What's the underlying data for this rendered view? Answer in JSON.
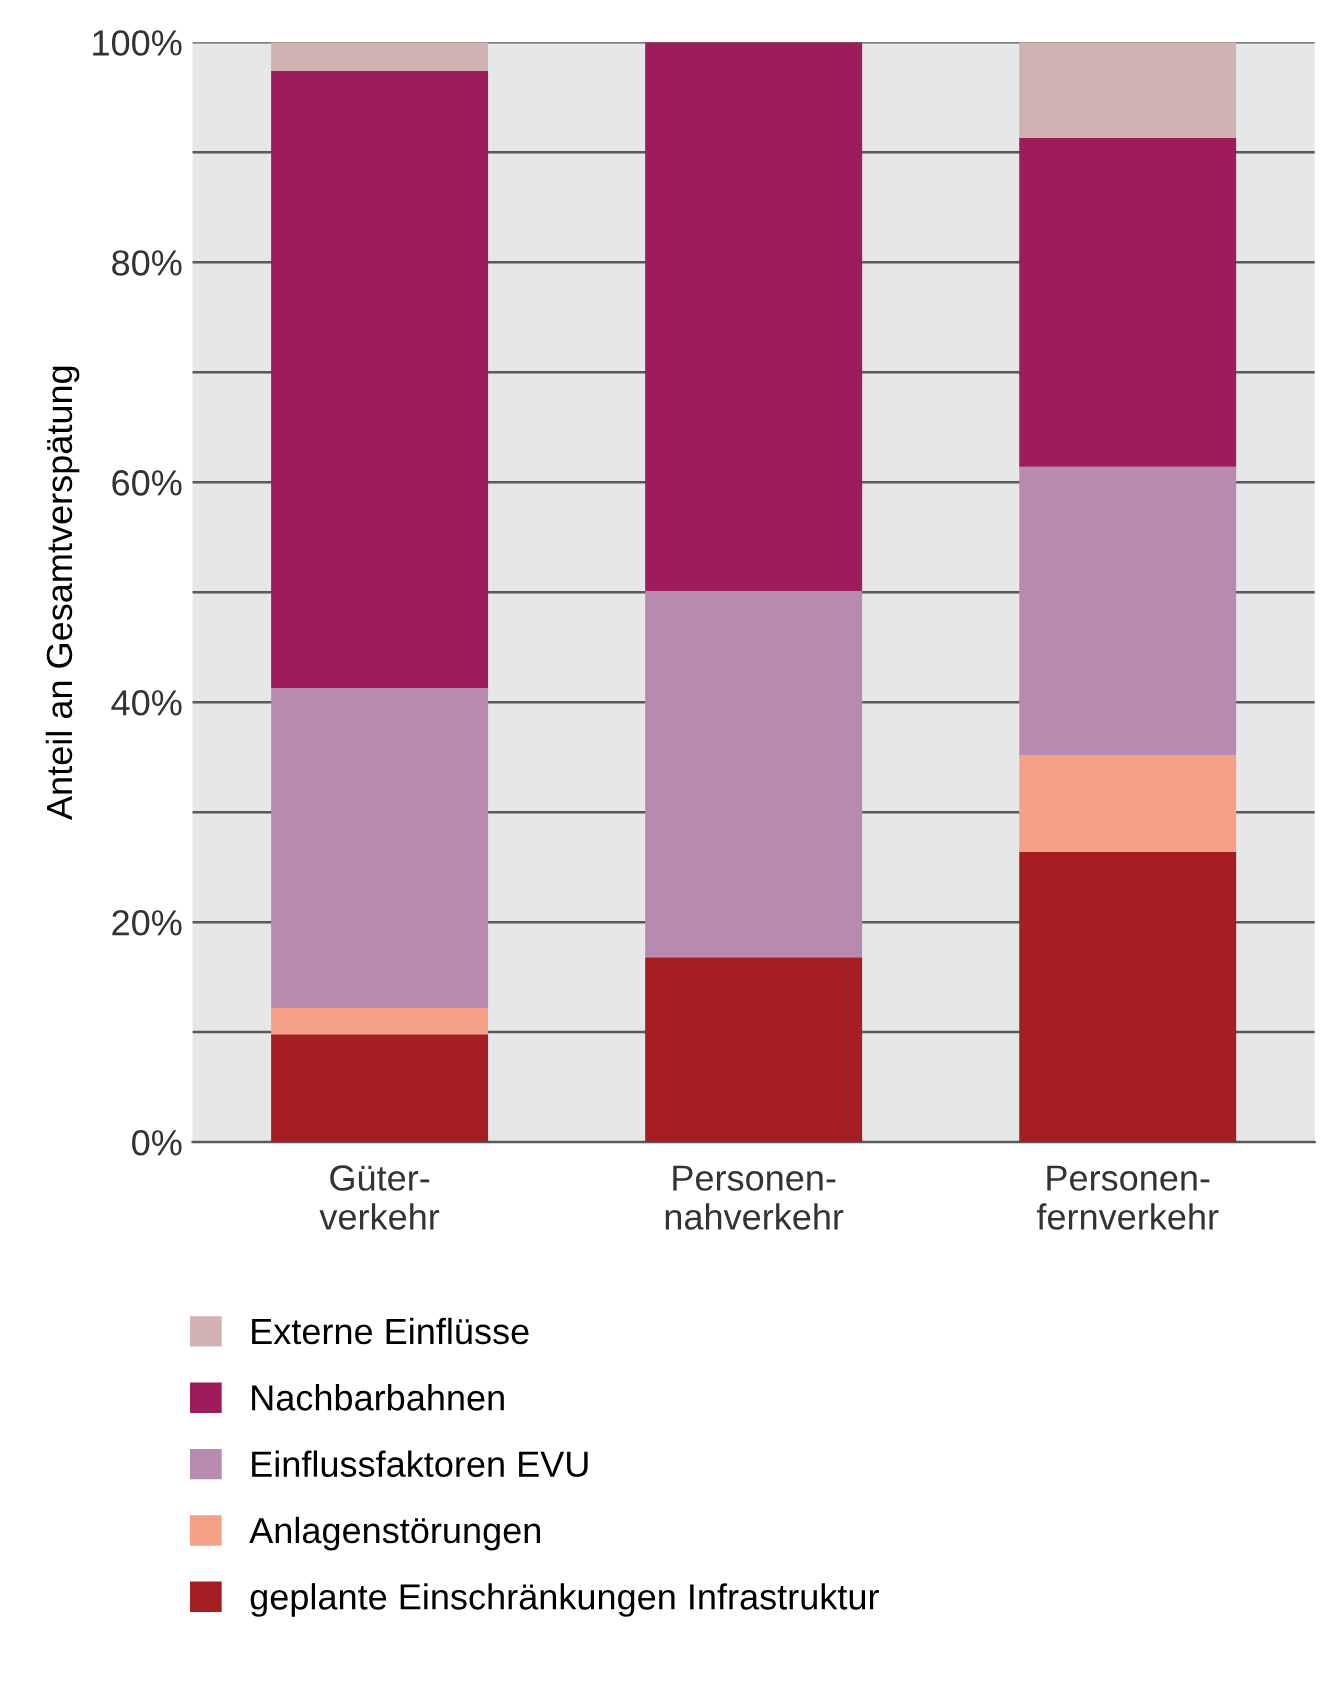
{
  "chart_data": {
    "type": "bar",
    "stacked": true,
    "ylabel": "Anteil an Gesamtverspätung",
    "categories": [
      "Güter-\nverkehr",
      "Personen-\nnahverkehr",
      "Personen-\nfernverkehr"
    ],
    "series": [
      {
        "name": "geplante Einschränkungen Infrastruktur",
        "color": "#a51e22",
        "values": [
          9.8,
          16.8,
          26.4
        ]
      },
      {
        "name": "Anlagenstörungen",
        "color": "#f4a086",
        "values": [
          2.4,
          0,
          8.8
        ]
      },
      {
        "name": "Einflussfaktoren EVU",
        "color": "#b98aaf",
        "values": [
          29.1,
          33.3,
          26.2
        ]
      },
      {
        "name": "Nachbarbahnen",
        "color": "#9c1c5c",
        "values": [
          56.1,
          49.9,
          29.9
        ]
      },
      {
        "name": "Externe Einflüsse",
        "color": "#d1b1b2",
        "values": [
          2.6,
          0,
          8.7
        ]
      }
    ],
    "ylim": [
      0,
      100
    ],
    "yticks": [
      {
        "value": 0,
        "label": "0%"
      },
      {
        "value": 10,
        "label": null
      },
      {
        "value": 20,
        "label": "20%"
      },
      {
        "value": 30,
        "label": null
      },
      {
        "value": 40,
        "label": "40%"
      },
      {
        "value": 50,
        "label": null
      },
      {
        "value": 60,
        "label": "60%"
      },
      {
        "value": 70,
        "label": null
      },
      {
        "value": 80,
        "label": "80%"
      },
      {
        "value": 90,
        "label": null
      },
      {
        "value": 100,
        "label": "100%"
      }
    ],
    "grid": "y",
    "legend": "bottom"
  }
}
